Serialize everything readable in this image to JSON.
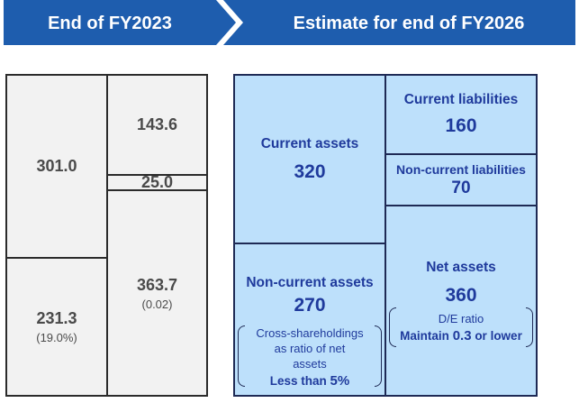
{
  "headers": {
    "left": "End of FY2023",
    "right": "Estimate for end of FY2026"
  },
  "colors": {
    "banner": "#1e5dae",
    "estimate_fill": "#bde0fb",
    "estimate_text": "#1f3a9c",
    "actual_fill": "#f2f2f2"
  },
  "fy2023": {
    "current_assets": "301.0",
    "non_current_assets": "231.3",
    "non_current_assets_sub": "(19.0%)",
    "current_liabilities": "143.6",
    "non_current_liabilities": "25.0",
    "net_assets": "363.7",
    "net_assets_sub": "(0.02)"
  },
  "fy2026": {
    "current_assets_label": "Current assets",
    "current_assets_value": "320",
    "non_current_assets_label": "Non-current assets",
    "non_current_assets_value": "270",
    "cross_note_line1": "Cross-shareholdings",
    "cross_note_line2": "as ratio of net",
    "cross_note_line3": "assets",
    "cross_note_target_prefix": "Less than",
    "cross_note_target_value": "5%",
    "current_liabilities_label": "Current liabilities",
    "current_liabilities_value": "160",
    "non_current_liabilities_label": "Non-current liabilities",
    "non_current_liabilities_value": "70",
    "net_assets_label": "Net assets",
    "net_assets_value": "360",
    "de_label": "D/E ratio",
    "de_target_prefix": "Maintain",
    "de_target_value": "0.3",
    "de_target_suffix": "or lower"
  }
}
